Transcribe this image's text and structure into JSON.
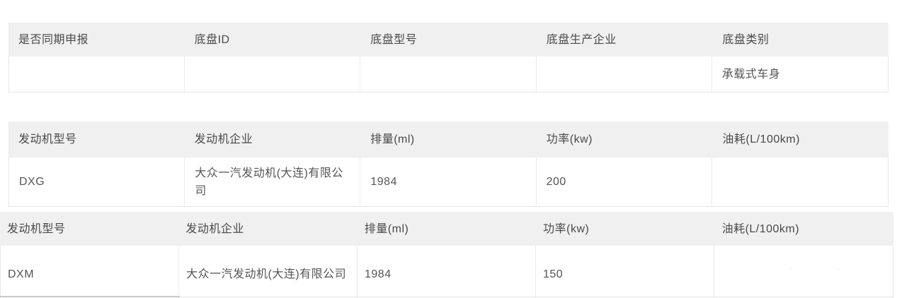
{
  "colors": {
    "header_bg": "#f0f0f0",
    "row_bg": "#ffffff",
    "border": "#e7e7e7",
    "header_text": "#4a4a4a",
    "body_text": "#555555"
  },
  "tables": {
    "chassis": {
      "headers": [
        "是否同期申报",
        "底盘ID",
        "底盘型号",
        "底盘生产企业",
        "底盘类别"
      ],
      "rows": [
        [
          "",
          "",
          "",
          "",
          "承载式车身"
        ]
      ]
    },
    "engine_dxg": {
      "headers": [
        "发动机型号",
        "发动机企业",
        "排量(ml)",
        "功率(kw)",
        "油耗(L/100km)"
      ],
      "rows": [
        [
          "DXG",
          "大众一汽发动机(大连)有限公司",
          "1984",
          "200",
          ""
        ]
      ]
    },
    "engine_dxm": {
      "headers": [
        "发动机型号",
        "发动机企业",
        "排量(ml)",
        "功率(kw)",
        "油耗(L/100km)"
      ],
      "rows": [
        [
          "DXM",
          "大众一汽发动机(大连)有限公司",
          "1984",
          "150",
          ""
        ]
      ]
    }
  },
  "watermark": {
    "glyphs": "· ·"
  }
}
